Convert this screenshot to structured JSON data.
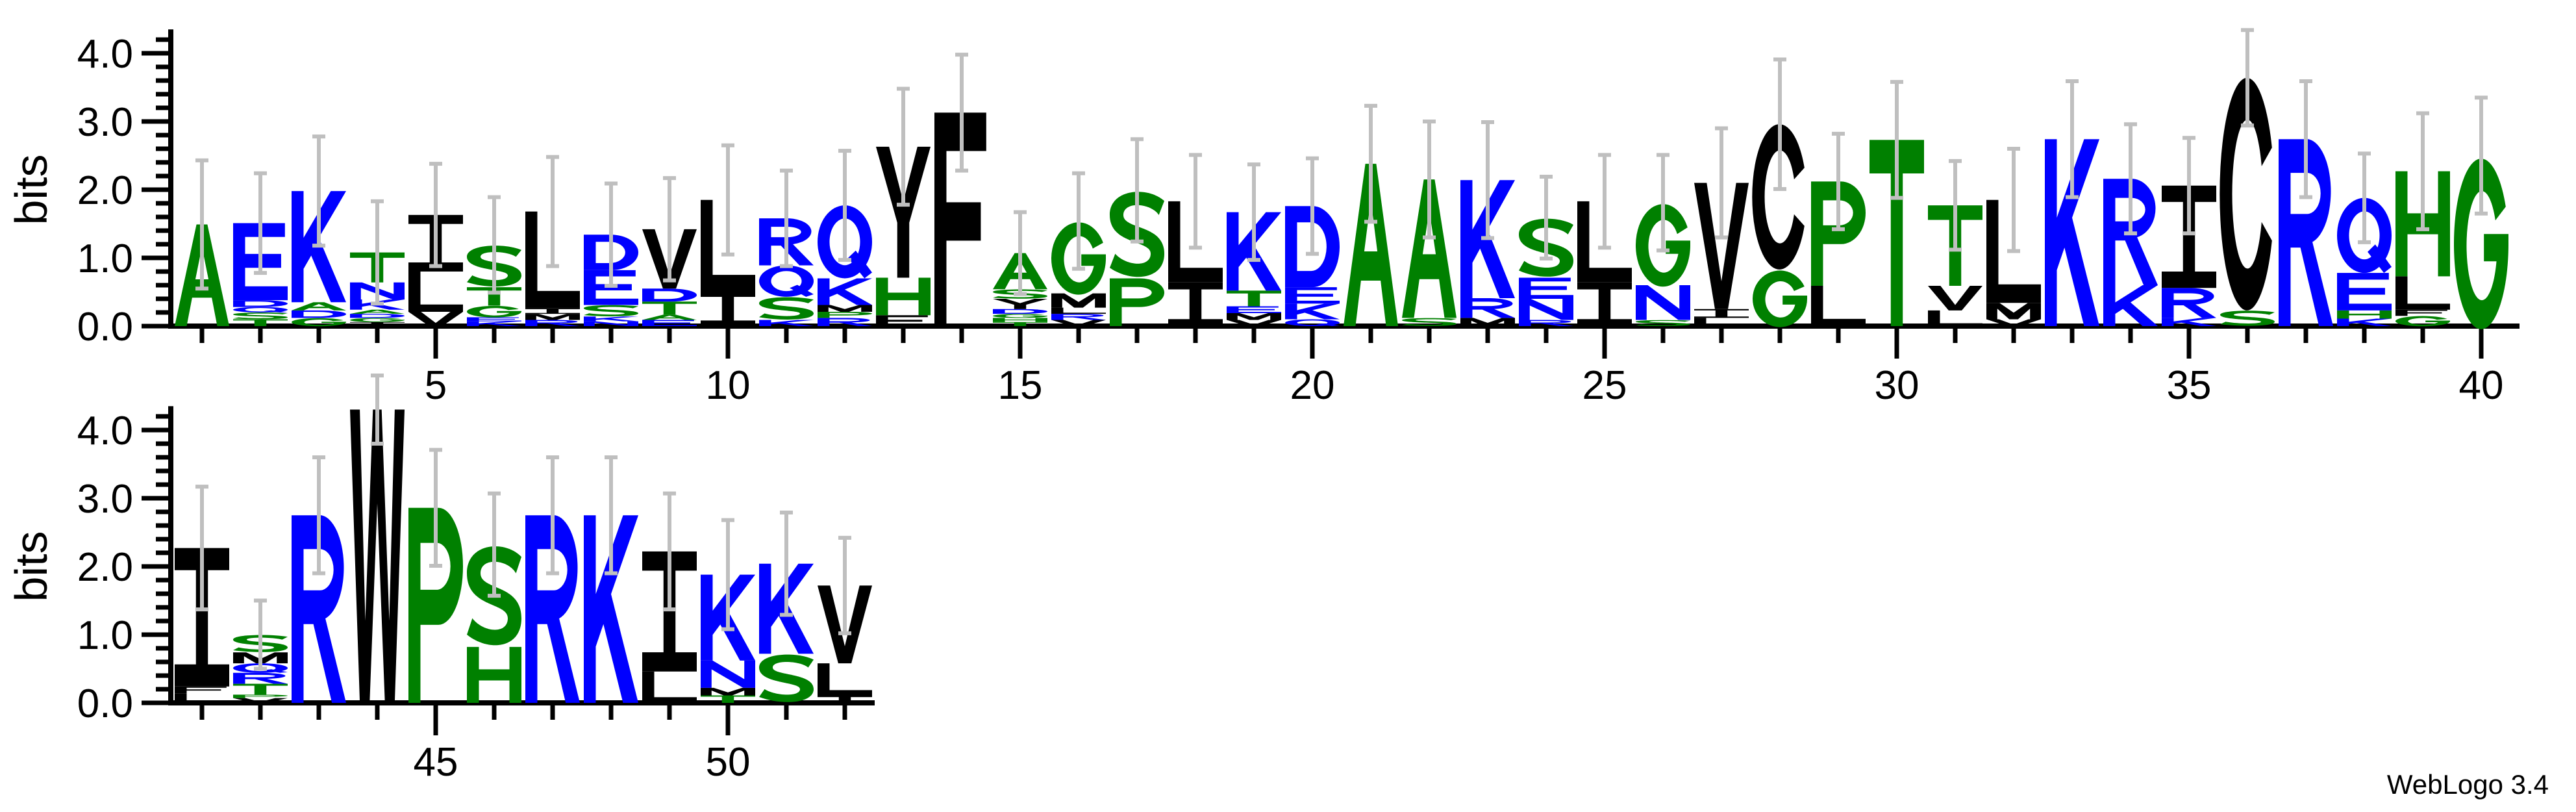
{
  "chart_data": {
    "type": "bar",
    "stacked": true,
    "ylabel": "bits",
    "ylim": [
      0,
      4.32
    ],
    "yticks": [
      "0.0",
      "1.0",
      "2.0",
      "3.0",
      "4.0"
    ],
    "colors": {
      "blue": "#0000FF",
      "green": "#008000",
      "black": "#000000",
      "error_bar": "#BFBFBF"
    },
    "letter_colors": {
      "D": "#0000FF",
      "E": "#0000FF",
      "K": "#0000FF",
      "R": "#0000FF",
      "N": "#0000FF",
      "Q": "#0000FF",
      "A": "#008000",
      "S": "#008000",
      "T": "#008000",
      "G": "#008000",
      "P": "#008000",
      "H": "#008000",
      "I": "#000000",
      "L": "#000000",
      "V": "#000000",
      "M": "#000000",
      "F": "#000000",
      "Y": "#000000",
      "W": "#000000",
      "C": "#000000"
    },
    "rows": [
      {
        "x_range": [
          1,
          40
        ],
        "xtick_labels": [
          "5",
          "10",
          "15",
          "20",
          "25",
          "30",
          "35",
          "40"
        ]
      },
      {
        "x_range": [
          41,
          52
        ],
        "xtick_labels": [
          "45",
          "50"
        ]
      }
    ],
    "positions": [
      {
        "pos": 1,
        "err": 0.94,
        "stack": [
          [
            "A",
            1.49
          ]
        ]
      },
      {
        "pos": 2,
        "err": 0.73,
        "stack": [
          [
            "E",
            1.13
          ],
          [
            "D",
            0.1
          ],
          [
            "Q",
            0.08
          ],
          [
            "S",
            0.1
          ],
          [
            "T",
            0.1
          ]
        ]
      },
      {
        "pos": 3,
        "err": 0.8,
        "stack": [
          [
            "K",
            1.63
          ],
          [
            "A",
            0.12
          ],
          [
            "D",
            0.11
          ],
          [
            "G",
            0.12
          ]
        ]
      },
      {
        "pos": 4,
        "err": 0.75,
        "stack": [
          [
            "T",
            0.44
          ],
          [
            "N",
            0.25
          ],
          [
            "K",
            0.15
          ],
          [
            "A",
            0.06
          ],
          [
            "D",
            0.06
          ],
          [
            "G",
            0.06
          ],
          [
            "I",
            0.06
          ]
        ]
      },
      {
        "pos": 5,
        "err": 0.75,
        "stack": [
          [
            "I",
            0.83
          ],
          [
            "L",
            0.59
          ],
          [
            "V",
            0.21
          ]
        ]
      },
      {
        "pos": 6,
        "err": 0.7,
        "stack": [
          [
            "S",
            0.62
          ],
          [
            "T",
            0.27
          ],
          [
            "G",
            0.17
          ],
          [
            "E",
            0.06
          ],
          [
            "K",
            0.07
          ]
        ]
      },
      {
        "pos": 7,
        "err": 0.8,
        "stack": [
          [
            "L",
            1.42
          ],
          [
            "I",
            0.08
          ],
          [
            "M",
            0.09
          ],
          [
            "R",
            0.09
          ]
        ]
      },
      {
        "pos": 8,
        "err": 0.75,
        "stack": [
          [
            "D",
            0.52
          ],
          [
            "E",
            0.51
          ],
          [
            "S",
            0.17
          ],
          [
            "K",
            0.07
          ],
          [
            "N",
            0.07
          ]
        ]
      },
      {
        "pos": 9,
        "err": 0.75,
        "stack": [
          [
            "V",
            0.87
          ],
          [
            "D",
            0.19
          ],
          [
            "T",
            0.19
          ],
          [
            "A",
            0.08
          ],
          [
            "E",
            0.09
          ]
        ]
      },
      {
        "pos": 10,
        "err": 0.8,
        "stack": [
          [
            "L",
            1.34
          ],
          [
            "I",
            0.51
          ]
        ]
      },
      {
        "pos": 11,
        "err": 0.7,
        "stack": [
          [
            "R",
            0.69
          ],
          [
            "Q",
            0.46
          ],
          [
            "S",
            0.34
          ],
          [
            "K",
            0.09
          ]
        ]
      },
      {
        "pos": 12,
        "err": 0.8,
        "stack": [
          [
            "Q",
            1.07
          ],
          [
            "K",
            0.39
          ],
          [
            "M",
            0.1
          ],
          [
            "P",
            0.09
          ],
          [
            "R",
            0.12
          ]
        ]
      },
      {
        "pos": 13,
        "err": 0.85,
        "stack": [
          [
            "Y",
            1.92
          ],
          [
            "H",
            0.55
          ],
          [
            "F",
            0.16
          ]
        ]
      },
      {
        "pos": 14,
        "err": 0.85,
        "stack": [
          [
            "F",
            3.13
          ]
        ]
      },
      {
        "pos": 15,
        "err": 0.6,
        "stack": [
          [
            "A",
            0.53
          ],
          [
            "S",
            0.14
          ],
          [
            "Y",
            0.15
          ],
          [
            "D",
            0.07
          ],
          [
            "G",
            0.06
          ],
          [
            "H",
            0.06
          ],
          [
            "T",
            0.06
          ]
        ]
      },
      {
        "pos": 16,
        "err": 0.7,
        "stack": [
          [
            "G",
            1.06
          ],
          [
            "M",
            0.21
          ],
          [
            "L",
            0.09
          ],
          [
            "R",
            0.09
          ],
          [
            "V",
            0.09
          ]
        ]
      },
      {
        "pos": 17,
        "err": 0.75,
        "stack": [
          [
            "S",
            1.29
          ],
          [
            "P",
            0.7
          ]
        ]
      },
      {
        "pos": 18,
        "err": 0.68,
        "stack": [
          [
            "L",
            1.19
          ],
          [
            "I",
            0.64
          ]
        ]
      },
      {
        "pos": 19,
        "err": 0.7,
        "stack": [
          [
            "K",
            1.15
          ],
          [
            "T",
            0.23
          ],
          [
            "E",
            0.1
          ],
          [
            "M",
            0.1
          ],
          [
            "V",
            0.09
          ]
        ]
      },
      {
        "pos": 20,
        "err": 0.7,
        "stack": [
          [
            "D",
            1.19
          ],
          [
            "E",
            0.24
          ],
          [
            "K",
            0.23
          ],
          [
            "Q",
            0.1
          ]
        ]
      },
      {
        "pos": 21,
        "err": 0.85,
        "stack": [
          [
            "A",
            2.38
          ]
        ]
      },
      {
        "pos": 22,
        "err": 0.85,
        "stack": [
          [
            "A",
            2.03
          ],
          [
            "S",
            0.12
          ]
        ]
      },
      {
        "pos": 23,
        "err": 0.85,
        "stack": [
          [
            "K",
            1.73
          ],
          [
            "R",
            0.29
          ],
          [
            "M",
            0.12
          ]
        ]
      },
      {
        "pos": 24,
        "err": 0.6,
        "stack": [
          [
            "S",
            0.88
          ],
          [
            "E",
            0.31
          ],
          [
            "N",
            0.31
          ],
          [
            "R",
            0.09
          ]
        ]
      },
      {
        "pos": 25,
        "err": 0.68,
        "stack": [
          [
            "L",
            1.19
          ],
          [
            "I",
            0.64
          ]
        ]
      },
      {
        "pos": 26,
        "err": 0.7,
        "stack": [
          [
            "G",
            1.21
          ],
          [
            "N",
            0.51
          ],
          [
            "S",
            0.09
          ]
        ]
      },
      {
        "pos": 27,
        "err": 0.8,
        "stack": [
          [
            "V",
            1.85
          ],
          [
            "I",
            0.13
          ],
          [
            "L",
            0.12
          ]
        ]
      },
      {
        "pos": 28,
        "err": 0.95,
        "stack": [
          [
            "C",
            2.13
          ],
          [
            "G",
            0.83
          ]
        ]
      },
      {
        "pos": 29,
        "err": 0.7,
        "stack": [
          [
            "P",
            1.53
          ],
          [
            "L",
            0.59
          ]
        ]
      },
      {
        "pos": 30,
        "err": 0.85,
        "stack": [
          [
            "T",
            2.73
          ]
        ]
      },
      {
        "pos": 31,
        "err": 0.65,
        "stack": [
          [
            "T",
            1.18
          ],
          [
            "V",
            0.36
          ],
          [
            "L",
            0.23
          ]
        ]
      },
      {
        "pos": 32,
        "err": 0.75,
        "stack": [
          [
            "L",
            1.51
          ],
          [
            "M",
            0.24
          ],
          [
            "V",
            0.1
          ]
        ]
      },
      {
        "pos": 33,
        "err": 0.85,
        "stack": [
          [
            "K",
            2.74
          ]
        ]
      },
      {
        "pos": 34,
        "err": 0.8,
        "stack": [
          [
            "R",
            1.56
          ],
          [
            "K",
            0.6
          ]
        ]
      },
      {
        "pos": 35,
        "err": 0.7,
        "stack": [
          [
            "I",
            1.5
          ],
          [
            "R",
            0.44
          ],
          [
            "K",
            0.12
          ]
        ]
      },
      {
        "pos": 36,
        "err": 0.7,
        "stack": [
          [
            "C",
            3.41
          ],
          [
            "S",
            0.23
          ]
        ]
      },
      {
        "pos": 37,
        "err": 0.85,
        "stack": [
          [
            "R",
            2.74
          ]
        ]
      },
      {
        "pos": 38,
        "err": 0.65,
        "stack": [
          [
            "Q",
            1.1
          ],
          [
            "E",
            0.55
          ],
          [
            "H",
            0.12
          ],
          [
            "K",
            0.11
          ]
        ]
      },
      {
        "pos": 39,
        "err": 0.85,
        "stack": [
          [
            "H",
            1.54
          ],
          [
            "L",
            0.49
          ],
          [
            "F",
            0.09
          ],
          [
            "G",
            0.15
          ]
        ]
      },
      {
        "pos": 40,
        "err": 0.85,
        "stack": [
          [
            "G",
            2.5
          ]
        ]
      },
      {
        "pos": 41,
        "err": 0.9,
        "stack": [
          [
            "I",
            2.03
          ],
          [
            "F",
            0.1
          ],
          [
            "L",
            0.14
          ]
        ]
      },
      {
        "pos": 42,
        "err": 0.5,
        "stack": [
          [
            "S",
            0.26
          ],
          [
            "M",
            0.16
          ],
          [
            "Q",
            0.14
          ],
          [
            "R",
            0.16
          ],
          [
            "T",
            0.16
          ],
          [
            "P",
            0.05
          ],
          [
            "V",
            0.07
          ]
        ]
      },
      {
        "pos": 43,
        "err": 0.85,
        "stack": [
          [
            "R",
            2.75
          ]
        ]
      },
      {
        "pos": 44,
        "err": 0.5,
        "stack": [
          [
            "W",
            4.3
          ]
        ]
      },
      {
        "pos": 45,
        "err": 0.85,
        "stack": [
          [
            "P",
            2.86
          ]
        ]
      },
      {
        "pos": 46,
        "err": 0.75,
        "stack": [
          [
            "S",
            1.5
          ],
          [
            "H",
            0.82
          ]
        ]
      },
      {
        "pos": 47,
        "err": 0.85,
        "stack": [
          [
            "R",
            2.75
          ]
        ]
      },
      {
        "pos": 48,
        "err": 0.85,
        "stack": [
          [
            "K",
            2.75
          ]
        ]
      },
      {
        "pos": 49,
        "err": 0.85,
        "stack": [
          [
            "I",
            1.76
          ],
          [
            "L",
            0.46
          ]
        ]
      },
      {
        "pos": 50,
        "err": 0.8,
        "stack": [
          [
            "K",
            1.26
          ],
          [
            "N",
            0.4
          ],
          [
            "M",
            0.11
          ],
          [
            "T",
            0.11
          ]
        ]
      },
      {
        "pos": 51,
        "err": 0.75,
        "stack": [
          [
            "K",
            1.32
          ],
          [
            "S",
            0.72
          ]
        ]
      },
      {
        "pos": 52,
        "err": 0.7,
        "stack": [
          [
            "V",
            1.14
          ],
          [
            "L",
            0.48
          ],
          [
            "I",
            0.1
          ]
        ]
      }
    ]
  },
  "footer": {
    "label": "WebLogo 3.4"
  }
}
